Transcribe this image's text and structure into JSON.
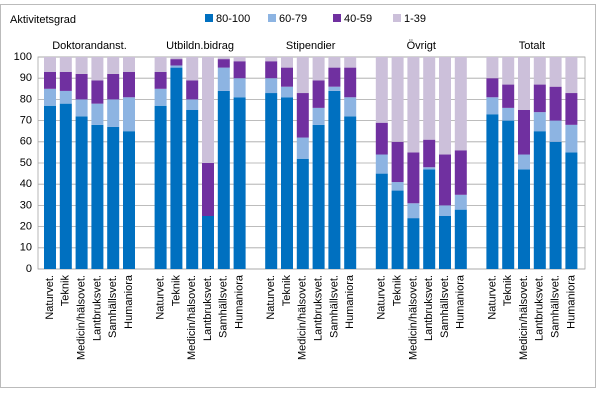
{
  "chart_data": {
    "type": "stacked-bar",
    "y_label": "Aktivitetsgrad",
    "groups": [
      "Doktorandanst.",
      "Utbildn.bidrag",
      "Stipendier",
      "Övrigt",
      "Totalt"
    ],
    "categories": [
      "Naturvet.",
      "Teknik",
      "Medicin/hälsovet.",
      "Lantbruksvet.",
      "Samhällsvet.",
      "Humaniora"
    ],
    "series": [
      {
        "name": "80-100",
        "color": "#0070c0",
        "values": [
          [
            77,
            78,
            72,
            68,
            67,
            65
          ],
          [
            77,
            95,
            75,
            25,
            84,
            81
          ],
          [
            83,
            81,
            52,
            68,
            84,
            72
          ],
          [
            45,
            37,
            24,
            47,
            25,
            28
          ],
          [
            73,
            70,
            47,
            65,
            60,
            55
          ]
        ]
      },
      {
        "name": "60-79",
        "color": "#8db4e2",
        "values": [
          [
            8,
            6,
            8,
            10,
            13,
            16
          ],
          [
            8,
            1,
            5,
            0,
            11,
            9
          ],
          [
            7,
            5,
            10,
            8,
            2,
            9
          ],
          [
            9,
            4,
            7,
            1,
            5,
            7
          ],
          [
            8,
            6,
            7,
            9,
            10,
            13
          ]
        ]
      },
      {
        "name": "40-59",
        "color": "#7030a0",
        "values": [
          [
            8,
            9,
            12,
            11,
            12,
            12
          ],
          [
            8,
            3,
            9,
            25,
            4,
            8
          ],
          [
            8,
            9,
            21,
            13,
            9,
            14
          ],
          [
            15,
            19,
            24,
            13,
            24,
            21
          ],
          [
            9,
            11,
            21,
            13,
            16,
            15
          ]
        ]
      },
      {
        "name": "1-39",
        "color": "#ccc0da",
        "values": [
          [
            7,
            7,
            8,
            11,
            8,
            7
          ],
          [
            7,
            1,
            11,
            50,
            1,
            2
          ],
          [
            2,
            5,
            17,
            11,
            5,
            5
          ],
          [
            31,
            40,
            45,
            39,
            46,
            44
          ],
          [
            10,
            13,
            25,
            13,
            14,
            17
          ]
        ]
      }
    ],
    "ylim": [
      0,
      100
    ],
    "yticks": [
      0,
      10,
      20,
      30,
      40,
      50,
      60,
      70,
      80,
      90,
      100
    ],
    "grid": true
  }
}
